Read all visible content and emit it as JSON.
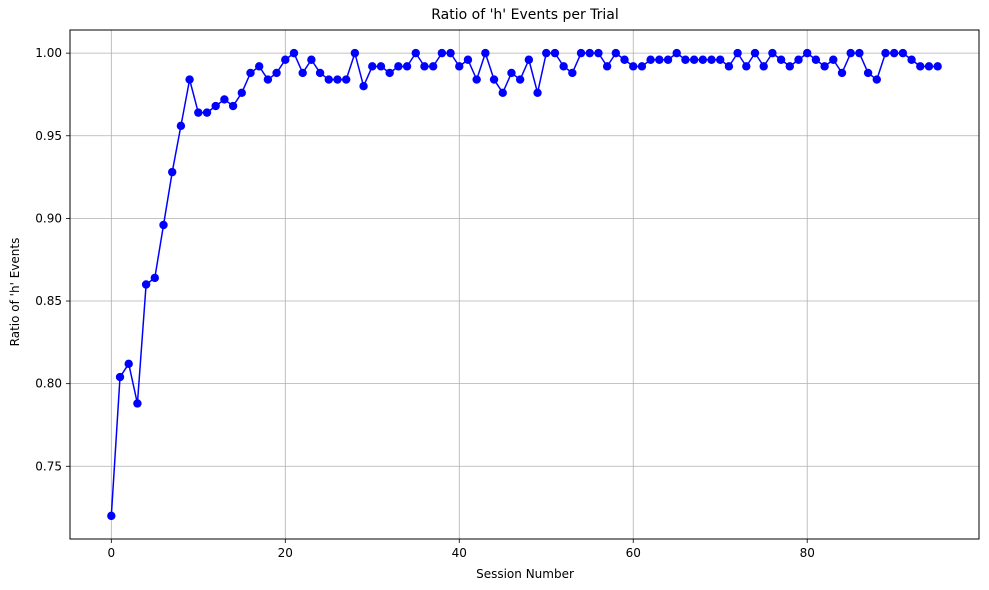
{
  "chart_data": {
    "type": "line",
    "title": "Ratio of 'h' Events per Trial",
    "xlabel": "Session Number",
    "ylabel": "Ratio of 'h' Events",
    "xlim": [
      -4.75,
      99.75
    ],
    "ylim": [
      0.706,
      1.014
    ],
    "xticks": [
      0,
      20,
      40,
      60,
      80
    ],
    "yticks": [
      0.75,
      0.8,
      0.85,
      0.9,
      0.95,
      1.0
    ],
    "ytick_labels": [
      "0.75",
      "0.80",
      "0.85",
      "0.90",
      "0.95",
      "1.00"
    ],
    "grid": true,
    "marker": "circle",
    "series": [
      {
        "color": "#0000ff",
        "x": [
          0,
          1,
          2,
          3,
          4,
          5,
          6,
          7,
          8,
          9,
          10,
          11,
          12,
          13,
          14,
          15,
          16,
          17,
          18,
          19,
          20,
          21,
          22,
          23,
          24,
          25,
          26,
          27,
          28,
          29,
          30,
          31,
          32,
          33,
          34,
          35,
          36,
          37,
          38,
          39,
          40,
          41,
          42,
          43,
          44,
          45,
          46,
          47,
          48,
          49,
          50,
          51,
          52,
          53,
          54,
          55,
          56,
          57,
          58,
          59,
          60,
          61,
          62,
          63,
          64,
          65,
          66,
          67,
          68,
          69,
          70,
          71,
          72,
          73,
          74,
          75,
          76,
          77,
          78,
          79,
          80,
          81,
          82,
          83,
          84,
          85,
          86,
          87,
          88,
          89,
          90,
          91,
          92,
          93,
          94,
          95
        ],
        "y": [
          0.72,
          0.804,
          0.812,
          0.788,
          0.86,
          0.864,
          0.896,
          0.928,
          0.956,
          0.984,
          0.964,
          0.964,
          0.968,
          0.972,
          0.968,
          0.976,
          0.988,
          0.992,
          0.984,
          0.988,
          0.996,
          1.0,
          0.988,
          0.996,
          0.988,
          0.984,
          0.984,
          0.984,
          1.0,
          0.98,
          0.992,
          0.992,
          0.988,
          0.992,
          0.992,
          1.0,
          0.992,
          0.992,
          1.0,
          1.0,
          0.992,
          0.996,
          0.984,
          1.0,
          0.984,
          0.976,
          0.988,
          0.984,
          0.996,
          0.976,
          1.0,
          1.0,
          0.992,
          0.988,
          1.0,
          1.0,
          1.0,
          0.992,
          1.0,
          0.996,
          0.992,
          0.992,
          0.996,
          0.996,
          0.996,
          1.0,
          0.996,
          0.996,
          0.996,
          0.996,
          0.996,
          0.992,
          1.0,
          0.992,
          1.0,
          0.992,
          1.0,
          0.996,
          0.992,
          0.996,
          1.0,
          0.996,
          0.992,
          0.996,
          0.988,
          1.0,
          1.0,
          0.988,
          0.984,
          1.0,
          1.0,
          1.0,
          0.996,
          0.992,
          0.992,
          0.992
        ]
      }
    ]
  }
}
